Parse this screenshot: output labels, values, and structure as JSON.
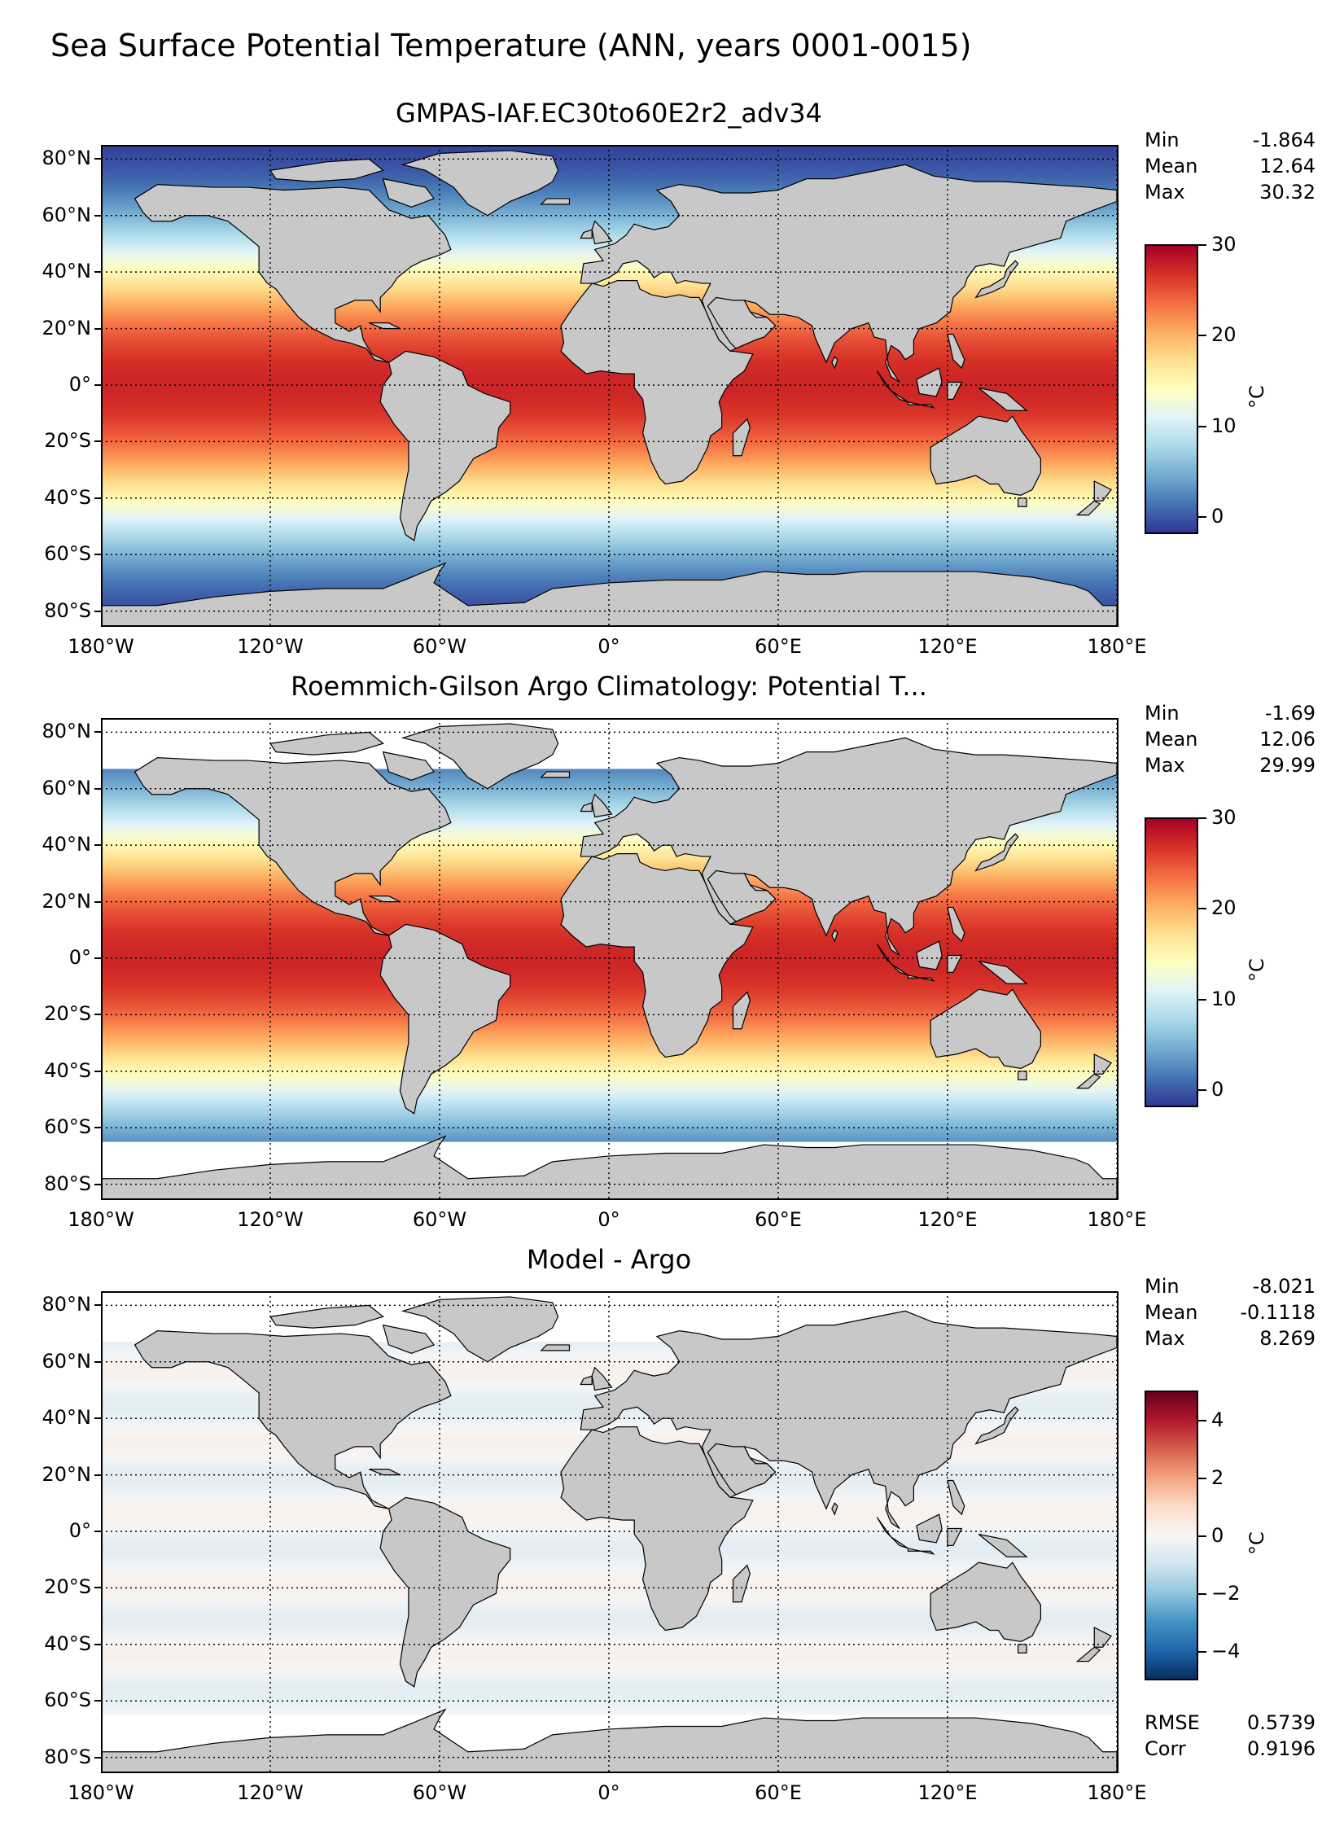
{
  "title": "Sea Surface Potential Temperature (ANN, years 0001-0015)",
  "colors": {
    "land": "#c8c8c8",
    "no_data": "#ffffff",
    "rdylbu": [
      "#313695",
      "#4575b4",
      "#74add1",
      "#abd9e9",
      "#e0f3f8",
      "#ffffbf",
      "#fee090",
      "#fdae61",
      "#f46d43",
      "#d73027",
      "#a50026"
    ],
    "rdbu": [
      "#053061",
      "#2166ac",
      "#4393c3",
      "#92c5de",
      "#d1e5f0",
      "#f7f7f7",
      "#fddbc7",
      "#f4a582",
      "#d6604d",
      "#b2182b",
      "#67001f"
    ]
  },
  "chart_data": [
    {
      "type": "heatmap",
      "title": "GMPAS-IAF.EC30to60E2r2_adv34",
      "xticks": [
        "180°W",
        "120°W",
        "60°W",
        "0°",
        "60°E",
        "120°E",
        "180°E"
      ],
      "yticks": [
        "80°N",
        "60°N",
        "40°N",
        "20°N",
        "0°",
        "20°S",
        "40°S",
        "60°S",
        "80°S"
      ],
      "xlim": [
        -180,
        180
      ],
      "ylim": [
        -85,
        85
      ],
      "stats": [
        {
          "label": "Min",
          "value": "-1.864"
        },
        {
          "label": "Mean",
          "value": "12.64"
        },
        {
          "label": "Max",
          "value": "30.32"
        }
      ],
      "colorbar": {
        "min": -2,
        "max": 30,
        "ticks": [
          "30",
          "20",
          "10",
          "0"
        ],
        "tick_values": [
          30,
          20,
          10,
          0
        ],
        "unit": "°C",
        "cmap": "rdylbu"
      },
      "data_extent": [
        -85,
        85
      ]
    },
    {
      "type": "heatmap",
      "title": "Roemmich-Gilson Argo Climatology: Potential T...",
      "xticks": [
        "180°W",
        "120°W",
        "60°W",
        "0°",
        "60°E",
        "120°E",
        "180°E"
      ],
      "yticks": [
        "80°N",
        "60°N",
        "40°N",
        "20°N",
        "0°",
        "20°S",
        "40°S",
        "60°S",
        "80°S"
      ],
      "xlim": [
        -180,
        180
      ],
      "ylim": [
        -85,
        85
      ],
      "stats": [
        {
          "label": "Min",
          "value": "-1.69"
        },
        {
          "label": "Mean",
          "value": "12.06"
        },
        {
          "label": "Max",
          "value": "29.99"
        }
      ],
      "colorbar": {
        "min": -2,
        "max": 30,
        "ticks": [
          "30",
          "20",
          "10",
          "0"
        ],
        "tick_values": [
          30,
          20,
          10,
          0
        ],
        "unit": "°C",
        "cmap": "rdylbu"
      },
      "data_extent": [
        -65,
        67
      ]
    },
    {
      "type": "heatmap",
      "title": "Model - Argo",
      "xticks": [
        "180°W",
        "120°W",
        "60°W",
        "0°",
        "60°E",
        "120°E",
        "180°E"
      ],
      "yticks": [
        "80°N",
        "60°N",
        "40°N",
        "20°N",
        "0°",
        "20°S",
        "40°S",
        "60°S",
        "80°S"
      ],
      "xlim": [
        -180,
        180
      ],
      "ylim": [
        -85,
        85
      ],
      "stats": [
        {
          "label": "Min",
          "value": "-8.021"
        },
        {
          "label": "Mean",
          "value": "-0.1118"
        },
        {
          "label": "Max",
          "value": "8.269"
        }
      ],
      "colorbar": {
        "min": -5,
        "max": 5,
        "ticks": [
          "4",
          "2",
          "0",
          "−2",
          "−4"
        ],
        "tick_values": [
          4,
          2,
          0,
          -2,
          -4
        ],
        "unit": "°C",
        "cmap": "rdbu"
      },
      "data_extent": [
        -65,
        67
      ],
      "extra_stats": [
        {
          "label": "RMSE",
          "value": "0.5739"
        },
        {
          "label": "Corr",
          "value": "0.9196"
        }
      ]
    }
  ]
}
